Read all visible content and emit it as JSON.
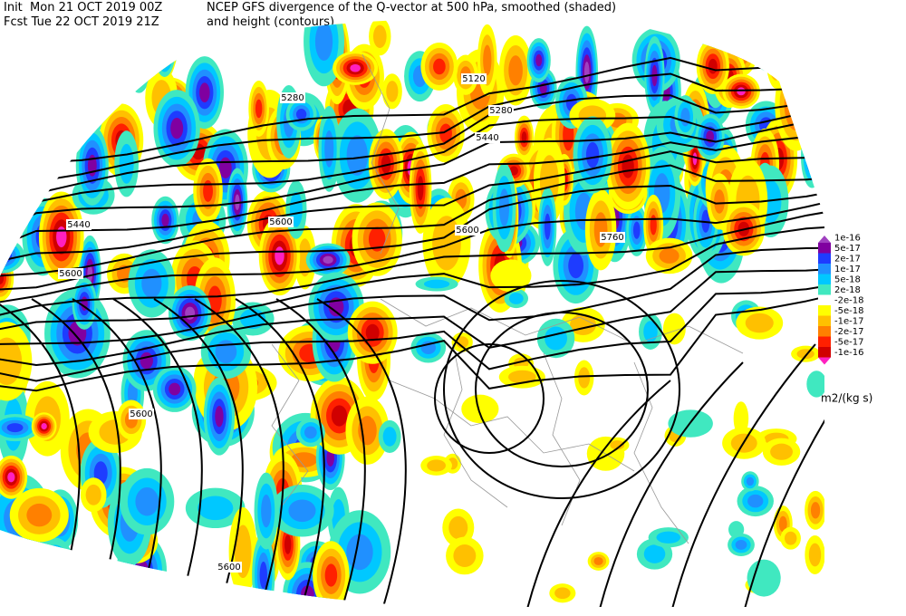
{
  "header": {
    "init": "Init  Mon 21 OCT 2019 00Z",
    "fcst": "Fcst Tue 22 OCT 2019 21Z",
    "title": "NCEP GFS divergence of the Q-vector at 500 hPa, smoothed (shaded)",
    "subtitle": "and height (contours)"
  },
  "contour_labels": [
    "5120",
    "5280",
    "5280",
    "5440",
    "5440",
    "5600",
    "5600",
    "5600",
    "5600",
    "5600",
    "5760"
  ],
  "colorbar": {
    "labels": [
      "1e-16",
      "5e-17",
      "2e-17",
      "1e-17",
      "5e-18",
      "2e-18",
      "-2e-18",
      "-5e-18",
      "-1e-17",
      "-2e-17",
      "-5e-17",
      "-1e-16"
    ],
    "units": "m2/(kg s)"
  }
}
